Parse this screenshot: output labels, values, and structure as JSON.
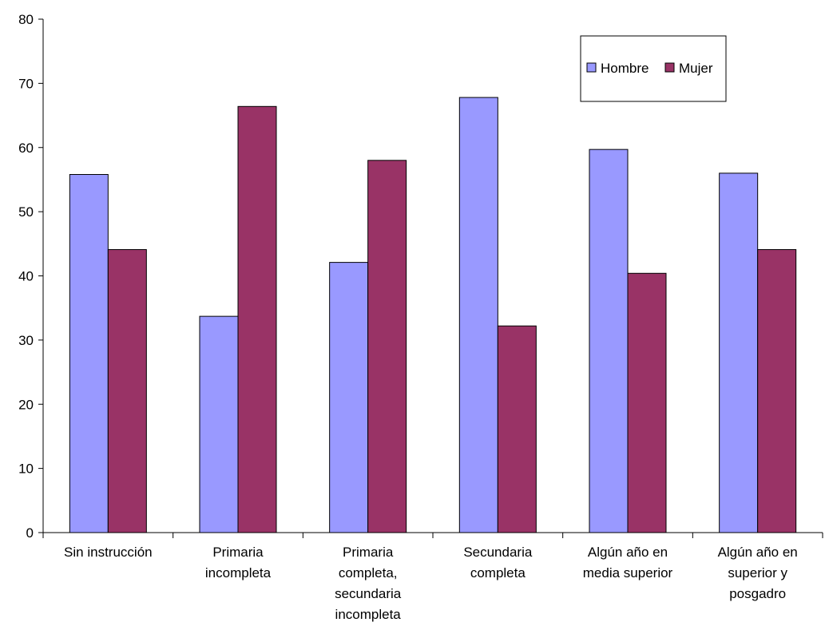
{
  "chart_data": {
    "type": "bar",
    "categories": [
      [
        "Sin instrucción"
      ],
      [
        "Primaria",
        "incompleta"
      ],
      [
        "Primaria",
        "completa,",
        "secundaria",
        "incompleta"
      ],
      [
        "Secundaria",
        "completa"
      ],
      [
        "Algún año en",
        "media superior"
      ],
      [
        "Algún año en",
        "superior y",
        "posgadro"
      ]
    ],
    "series": [
      {
        "name": "Hombre",
        "color": "#9999ff",
        "values": [
          55.8,
          33.7,
          42.1,
          67.8,
          59.7,
          56.0
        ]
      },
      {
        "name": "Mujer",
        "color": "#993366",
        "values": [
          44.1,
          66.4,
          58.0,
          32.2,
          40.4,
          44.1
        ]
      }
    ],
    "yticks": [
      "0",
      "10",
      "20",
      "30",
      "40",
      "50",
      "60",
      "70",
      "80"
    ],
    "ylim": [
      0,
      80
    ],
    "grid": false,
    "legend_position": "top-right"
  }
}
